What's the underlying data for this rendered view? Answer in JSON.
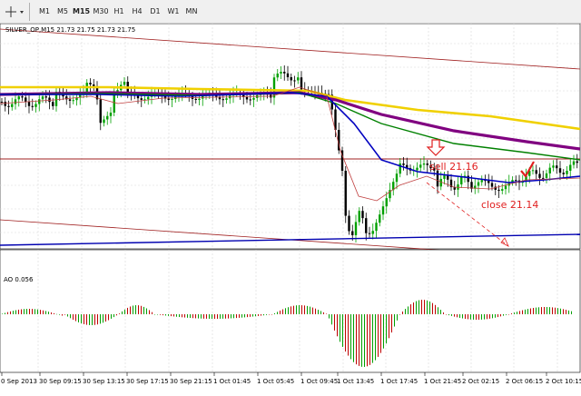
{
  "toolbar": {
    "icon": "crosshair-icon",
    "timeframes": [
      "M1",
      "M5",
      "M15",
      "M30",
      "H1",
      "H4",
      "D1",
      "W1",
      "MN"
    ],
    "active": "M15"
  },
  "main_chart": {
    "header": "SILVER_OP,M15  21.73 21.75 21.73 21.75",
    "annotations": {
      "sell": "sell 21.16",
      "close": "close 21.14"
    }
  },
  "indicator": {
    "label": "AO 0.056"
  },
  "time_axis": [
    "0 Sep 2013",
    "30 Sep 09:15",
    "30 Sep 13:15",
    "30 Sep 17:15",
    "30 Sep 21:15",
    "1 Oct 01:45",
    "1 Oct 05:45",
    "1 Oct 09:45",
    "1 Oct 13:45",
    "1 Oct 17:45",
    "1 Oct 21:45",
    "2 Oct 02:15",
    "2 Oct 06:15",
    "2 Oct 10:15"
  ],
  "colors": {
    "bull_candle": "#00a000",
    "bear_candle": "#000000",
    "ma_yellow": "#f0d000",
    "ma_purple": "#800080",
    "ma_green": "#008000",
    "ma_blue": "#0000c0",
    "ma_red": "#c04040",
    "channel": "#a02020",
    "ao_up": "#00a000",
    "ao_down": "#c00000",
    "annotation": "#e02020"
  }
}
